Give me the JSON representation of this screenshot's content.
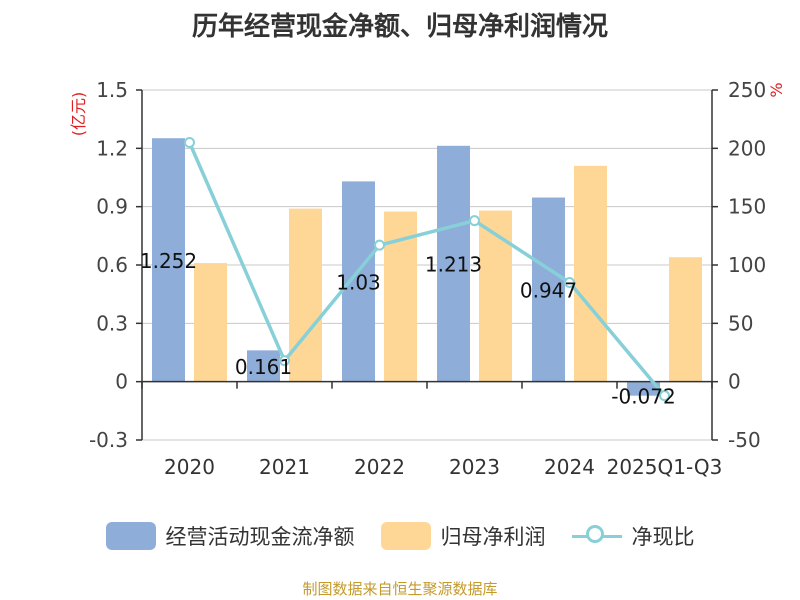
{
  "chart_data": {
    "type": "bar",
    "title": "历年经营现金净额、归母净利润情况",
    "categories": [
      "2020",
      "2021",
      "2022",
      "2023",
      "2024",
      "2025Q1-Q3"
    ],
    "series": [
      {
        "name": "经营活动现金流净额",
        "type": "bar",
        "axis": "left",
        "values": [
          1.252,
          0.161,
          1.03,
          1.213,
          0.947,
          -0.072
        ],
        "labels": [
          "1.252",
          "0.161",
          "1.03",
          "1.213",
          "0.947",
          "-0.072"
        ]
      },
      {
        "name": "归母净利润",
        "type": "bar",
        "axis": "left",
        "values": [
          0.61,
          0.89,
          0.875,
          0.88,
          1.11,
          0.64
        ]
      },
      {
        "name": "净现比",
        "type": "line",
        "axis": "right",
        "values": [
          205,
          18,
          117,
          138,
          85,
          -12
        ]
      }
    ],
    "y_left": {
      "unit": "(亿元)",
      "ylim": [
        -0.3,
        1.5
      ],
      "ticks": [
        "1.5",
        "1.2",
        "0.9",
        "0.6",
        "0.3",
        "0",
        "-0.3"
      ]
    },
    "y_right": {
      "unit": "%",
      "ylim": [
        -50,
        250
      ],
      "ticks": [
        "250",
        "200",
        "150",
        "100",
        "50",
        "0",
        "-50"
      ]
    },
    "grid": true,
    "legend_position": "bottom"
  },
  "colors": {
    "cash_flow": "#8eadd9",
    "net_profit": "#fed796",
    "ratio_line": "#88d0d8",
    "unit_red": "#e02020",
    "source_text": "#c49a2c"
  },
  "source": "制图数据来自恒生聚源数据库"
}
